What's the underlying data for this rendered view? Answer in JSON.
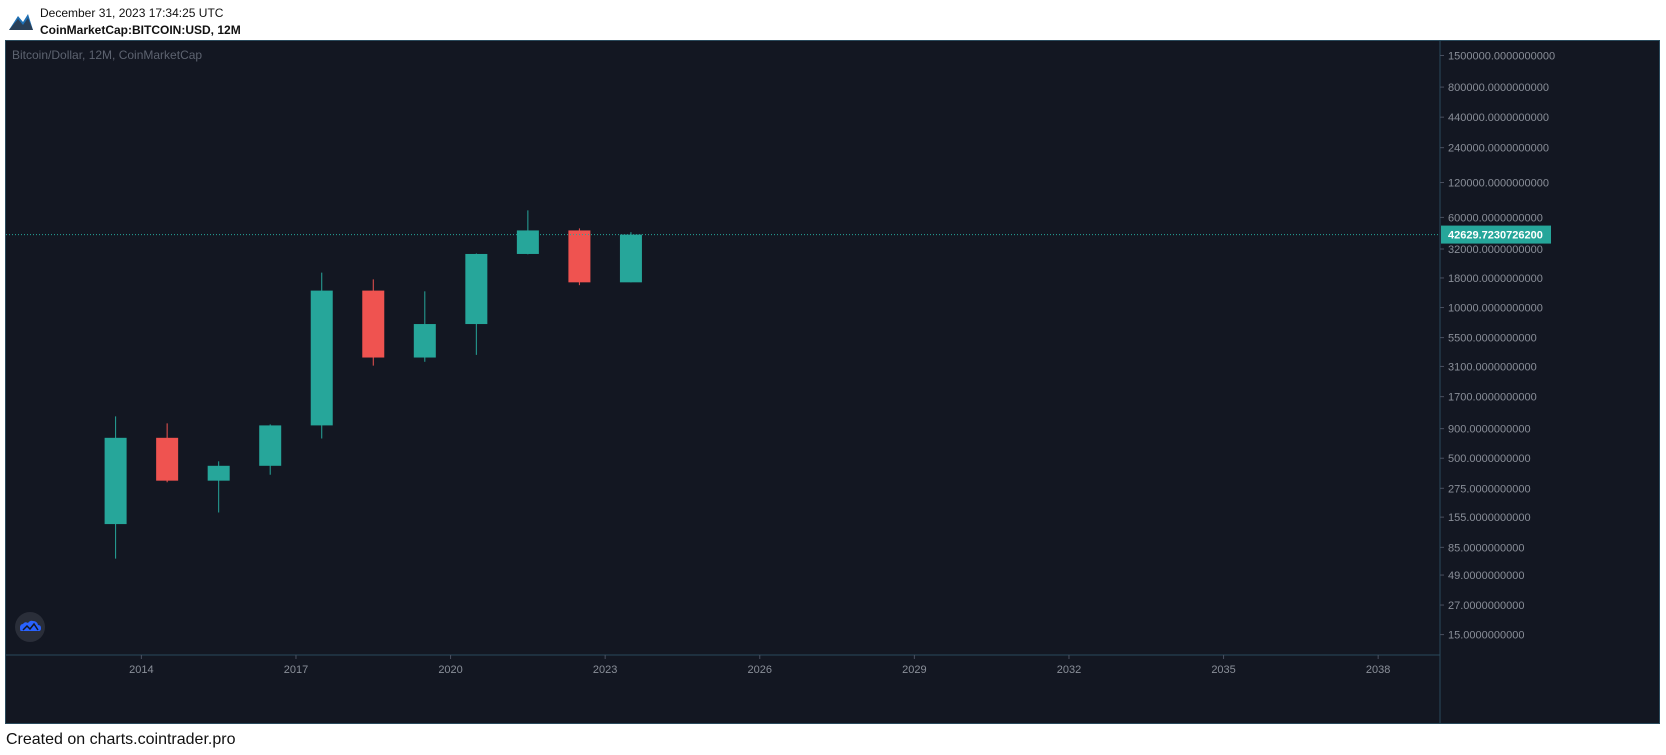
{
  "header": {
    "timestamp": "December 31, 2023 17:34:25 UTC",
    "symbol": "CoinMarketCap:BITCOIN:USD, 12M"
  },
  "footer": {
    "text": "Created on charts.cointrader.pro"
  },
  "colors": {
    "background": "#131722",
    "up": "#26a69a",
    "down": "#ef5350",
    "axis_text": "#8a8f99",
    "price_line": "#26a69a",
    "border": "#2a4a5c"
  },
  "icons": {
    "header_logo": "cointrader-logo-icon",
    "watermark": "cloud-logo-icon"
  },
  "chart_data": {
    "type": "candlestick",
    "title": "Bitcoin/Dollar, 12M, CoinMarketCap",
    "y_scale": "log",
    "ylim": [
      10,
      2000000
    ],
    "xlim": [
      2011.8,
      2039.2
    ],
    "x_ticks": [
      "2014",
      "2017",
      "2020",
      "2023",
      "2026",
      "2029",
      "2032",
      "2035",
      "2038"
    ],
    "y_ticks": [
      "15.0000000000",
      "27.0000000000",
      "49.0000000000",
      "85.0000000000",
      "155.0000000000",
      "275.0000000000",
      "500.0000000000",
      "900.0000000000",
      "1700.0000000000",
      "3100.0000000000",
      "5500.0000000000",
      "10000.0000000000",
      "18000.0000000000",
      "32000.0000000000",
      "60000.0000000000",
      "120000.0000000000",
      "240000.0000000000",
      "440000.0000000000",
      "800000.0000000000",
      "1500000.0000000000"
    ],
    "last_price": "42629.7230726200",
    "candles": [
      {
        "year": 2013,
        "open": 135,
        "high": 1150,
        "low": 68,
        "close": 750
      },
      {
        "year": 2014,
        "open": 750,
        "high": 1000,
        "low": 310,
        "close": 320
      },
      {
        "year": 2015,
        "open": 320,
        "high": 470,
        "low": 170,
        "close": 430
      },
      {
        "year": 2016,
        "open": 430,
        "high": 980,
        "low": 360,
        "close": 960
      },
      {
        "year": 2017,
        "open": 960,
        "high": 20000,
        "low": 740,
        "close": 14000
      },
      {
        "year": 2018,
        "open": 14000,
        "high": 17500,
        "low": 3150,
        "close": 3700
      },
      {
        "year": 2019,
        "open": 3700,
        "high": 13800,
        "low": 3400,
        "close": 7200
      },
      {
        "year": 2020,
        "open": 7200,
        "high": 29300,
        "low": 3900,
        "close": 29000
      },
      {
        "year": 2021,
        "open": 29000,
        "high": 69000,
        "low": 28800,
        "close": 46300
      },
      {
        "year": 2022,
        "open": 46300,
        "high": 48200,
        "low": 15600,
        "close": 16500
      },
      {
        "year": 2023,
        "open": 16500,
        "high": 44700,
        "low": 16500,
        "close": 42629.72307262
      }
    ]
  }
}
